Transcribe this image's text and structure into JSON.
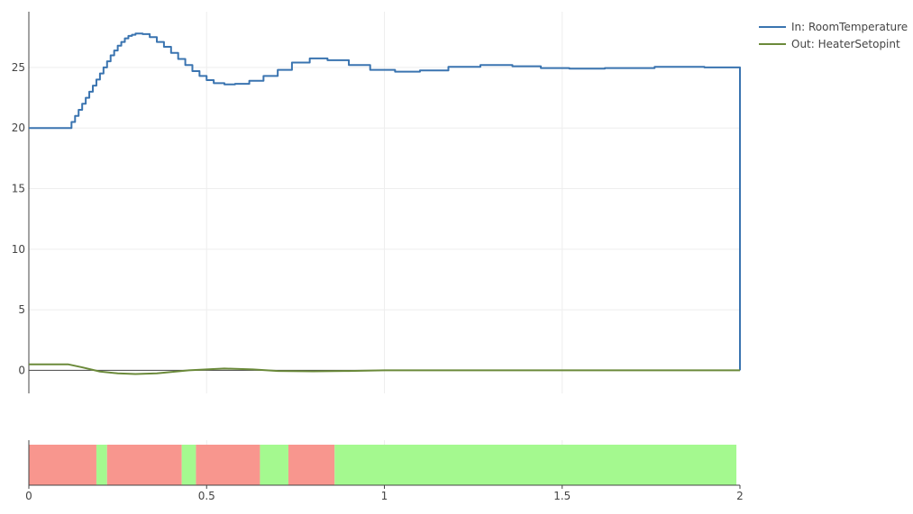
{
  "chart_data": [
    {
      "type": "line",
      "xlim": [
        0,
        2
      ],
      "ylim": [
        -1.9,
        29.6
      ],
      "yticks": [
        0,
        5,
        10,
        15,
        20,
        25
      ],
      "grid": true,
      "legend_placement": "top-right",
      "series": [
        {
          "name": "In: RoomTemperature",
          "color": "#3a74b0",
          "shape": "step",
          "x": [
            0,
            0.11,
            0.12,
            0.13,
            0.14,
            0.15,
            0.16,
            0.17,
            0.18,
            0.19,
            0.2,
            0.21,
            0.22,
            0.23,
            0.24,
            0.25,
            0.26,
            0.27,
            0.28,
            0.29,
            0.3,
            0.32,
            0.34,
            0.36,
            0.38,
            0.4,
            0.42,
            0.44,
            0.46,
            0.48,
            0.5,
            0.52,
            0.55,
            0.58,
            0.62,
            0.66,
            0.7,
            0.74,
            0.79,
            0.84,
            0.9,
            0.96,
            1.03,
            1.1,
            1.18,
            1.27,
            1.36,
            1.44,
            1.52,
            1.62,
            1.76,
            1.9,
            2,
            2
          ],
          "y": [
            20,
            20,
            20.5,
            21,
            21.5,
            22,
            22.5,
            23,
            23.5,
            24,
            24.5,
            25,
            25.5,
            26,
            26.4,
            26.8,
            27.1,
            27.4,
            27.6,
            27.7,
            27.8,
            27.75,
            27.5,
            27.1,
            26.7,
            26.2,
            25.7,
            25.2,
            24.7,
            24.3,
            23.95,
            23.7,
            23.6,
            23.65,
            23.9,
            24.3,
            24.8,
            25.4,
            25.75,
            25.6,
            25.2,
            24.8,
            24.65,
            24.75,
            25.05,
            25.2,
            25.1,
            24.95,
            24.9,
            24.95,
            25.05,
            25,
            25,
            0
          ]
        },
        {
          "name": "Out: HeaterSetopint",
          "color": "#6b8a3a",
          "shape": "linear",
          "x": [
            0,
            0.11,
            0.15,
            0.2,
            0.25,
            0.3,
            0.36,
            0.45,
            0.55,
            0.63,
            0.7,
            0.8,
            0.9,
            1,
            2
          ],
          "y": [
            0.5,
            0.5,
            0.25,
            -0.1,
            -0.25,
            -0.3,
            -0.25,
            0,
            0.15,
            0.08,
            -0.05,
            -0.08,
            -0.05,
            0,
            0
          ]
        }
      ]
    },
    {
      "type": "timeline",
      "xlim": [
        0,
        2
      ],
      "xticks": [
        "0",
        "0.5",
        "1",
        "1.5",
        "2"
      ],
      "segments": [
        {
          "start": 0,
          "end": 0.19,
          "color": "#f8968e"
        },
        {
          "start": 0.19,
          "end": 0.22,
          "color": "#a4f98f"
        },
        {
          "start": 0.22,
          "end": 0.43,
          "color": "#f8968e"
        },
        {
          "start": 0.43,
          "end": 0.47,
          "color": "#a4f98f"
        },
        {
          "start": 0.47,
          "end": 0.65,
          "color": "#f8968e"
        },
        {
          "start": 0.65,
          "end": 0.73,
          "color": "#a4f98f"
        },
        {
          "start": 0.73,
          "end": 0.86,
          "color": "#f8968e"
        },
        {
          "start": 0.86,
          "end": 1.99,
          "color": "#a4f98f"
        }
      ]
    }
  ]
}
